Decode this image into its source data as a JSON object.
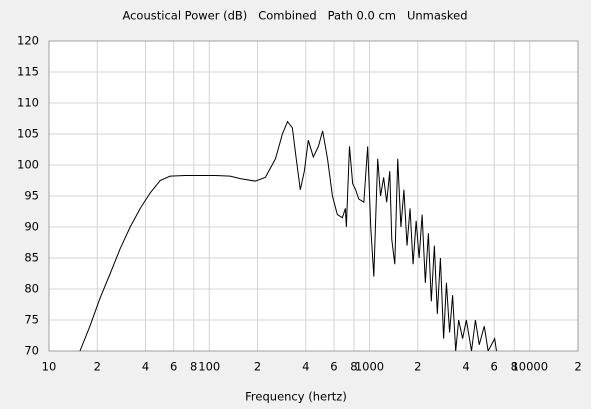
{
  "chart_data": {
    "type": "line",
    "title": "Acoustical Power (dB)   Combined   Path 0.0 cm   Unmasked",
    "x_label": "Frequency (hertz)",
    "x_scale": "log",
    "grid": true,
    "color": "#000000",
    "xlim": [
      10,
      20000
    ],
    "ylim": [
      70,
      120
    ],
    "yticks": [
      70,
      75,
      80,
      85,
      90,
      95,
      100,
      105,
      110,
      115,
      120
    ],
    "xticks": [
      10,
      {
        "value": 20,
        "label": "2"
      },
      {
        "value": 40,
        "label": "4"
      },
      {
        "value": 60,
        "label": "6"
      },
      {
        "value": 80,
        "label": "8"
      },
      100,
      {
        "value": 200,
        "label": "2"
      },
      {
        "value": 400,
        "label": "4"
      },
      {
        "value": 600,
        "label": "6"
      },
      {
        "value": 800,
        "label": "8"
      },
      1000,
      {
        "value": 2000,
        "label": "2"
      },
      {
        "value": 4000,
        "label": "4"
      },
      {
        "value": 6000,
        "label": "6"
      },
      {
        "value": 8000,
        "label": "8"
      },
      10000,
      {
        "value": 20000,
        "label": "2"
      }
    ],
    "x": [
      15.6,
      18.0,
      20.8,
      24.1,
      27.8,
      32.1,
      37.1,
      42.8,
      49.4,
      57.0,
      70.8,
      109,
      135,
      156,
      194,
      224,
      259,
      286,
      308,
      330,
      349,
      370,
      392,
      415,
      446,
      480,
      510,
      547,
      587,
      630,
      677,
      707,
      717,
      750,
      785,
      820,
      857,
      922,
      974,
      1018,
      1064,
      1095,
      1125,
      1172,
      1225,
      1280,
      1338,
      1377,
      1438,
      1500,
      1570,
      1640,
      1714,
      1790,
      1870,
      1955,
      2040,
      2130,
      2230,
      2330,
      2430,
      2540,
      2650,
      2770,
      2900,
      3020,
      3160,
      3300,
      3450,
      3600,
      3810,
      4020,
      4330,
      4580,
      4840,
      5200,
      5500,
      6040,
      6200
    ],
    "values": [
      70,
      74,
      78.5,
      82.5,
      86.5,
      90,
      93,
      95.5,
      97.5,
      98.2,
      98.3,
      98.3,
      98.2,
      97.8,
      97.4,
      98,
      101,
      105,
      107,
      106,
      101,
      96,
      99,
      104,
      101.3,
      103,
      105.5,
      101,
      95,
      92,
      91.5,
      93,
      90,
      103,
      97,
      96,
      94.5,
      94,
      103,
      90,
      82,
      92,
      101,
      95,
      98,
      94,
      99,
      88,
      84,
      101,
      90,
      96,
      87,
      93,
      84,
      91,
      85,
      92,
      81,
      89,
      78,
      87,
      76,
      85,
      72,
      81,
      73,
      79,
      70,
      75,
      72,
      75,
      70,
      75,
      71,
      74,
      70,
      72,
      70
    ]
  }
}
